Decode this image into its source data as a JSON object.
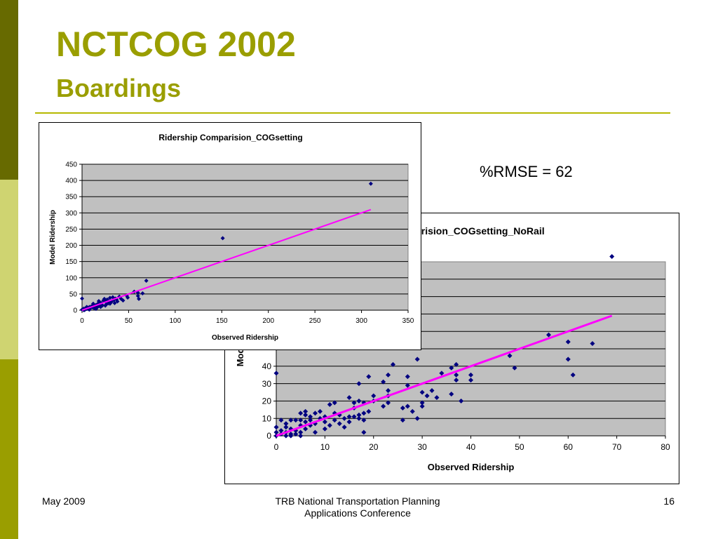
{
  "slide": {
    "title": "NCTCOG 2002",
    "subtitle": "Boardings",
    "rmse_label": "%RMSE = 62",
    "footer": {
      "date": "May 2009",
      "conference_line1": "TRB National Transportation Planning",
      "conference_line2": "Applications Conference",
      "page_number": "16"
    },
    "colors": {
      "accent": "#9a9e00",
      "bar_dark": "#676a00",
      "bar_light": "#cfd471",
      "plot_bg": "#c0c0c0",
      "point": "#000080",
      "trend": "#ff00ff"
    }
  },
  "chart_data": [
    {
      "type": "scatter",
      "title": "Ridership Comparision_COGsetting",
      "xlabel": "Observed Ridership",
      "ylabel": "Model Ridership",
      "xlim": [
        0,
        350
      ],
      "ylim": [
        0,
        450
      ],
      "xticks": [
        0,
        50,
        100,
        150,
        200,
        250,
        300,
        350
      ],
      "yticks": [
        0,
        50,
        100,
        150,
        200,
        250,
        300,
        350,
        400,
        450
      ],
      "grid": true,
      "trendline": {
        "x": [
          0,
          310
        ],
        "y": [
          0,
          310
        ]
      },
      "points": [
        [
          0,
          2
        ],
        [
          1,
          3
        ],
        [
          2,
          5
        ],
        [
          3,
          1
        ],
        [
          4,
          6
        ],
        [
          5,
          4
        ],
        [
          6,
          8
        ],
        [
          7,
          3
        ],
        [
          8,
          10
        ],
        [
          9,
          7
        ],
        [
          10,
          12
        ],
        [
          11,
          9
        ],
        [
          12,
          14
        ],
        [
          13,
          6
        ],
        [
          14,
          11
        ],
        [
          15,
          16
        ],
        [
          16,
          8
        ],
        [
          17,
          20
        ],
        [
          18,
          13
        ],
        [
          19,
          25
        ],
        [
          20,
          18
        ],
        [
          21,
          22
        ],
        [
          22,
          15
        ],
        [
          23,
          30
        ],
        [
          24,
          35
        ],
        [
          25,
          27
        ],
        [
          26,
          18
        ],
        [
          27,
          33
        ],
        [
          28,
          21
        ],
        [
          29,
          26
        ],
        [
          30,
          38
        ],
        [
          31,
          24
        ],
        [
          32,
          29
        ],
        [
          33,
          40
        ],
        [
          34,
          31
        ],
        [
          35,
          22
        ],
        [
          36,
          36
        ],
        [
          37,
          33
        ],
        [
          38,
          27
        ],
        [
          40,
          42
        ],
        [
          42,
          35
        ],
        [
          44,
          30
        ],
        [
          48,
          45
        ],
        [
          49,
          39
        ],
        [
          56,
          57
        ],
        [
          60,
          44
        ],
        [
          60,
          54
        ],
        [
          61,
          35
        ],
        [
          65,
          52
        ],
        [
          69,
          91
        ],
        [
          0,
          36
        ],
        [
          2,
          0
        ],
        [
          5,
          10
        ],
        [
          8,
          2
        ],
        [
          12,
          20
        ],
        [
          15,
          4
        ],
        [
          18,
          28
        ],
        [
          20,
          10
        ],
        [
          25,
          14
        ],
        [
          30,
          20
        ],
        [
          151,
          222
        ],
        [
          310,
          390
        ]
      ]
    },
    {
      "type": "scatter",
      "title": "arision_COGsetting_NoRail",
      "xlabel": "Observed Ridership",
      "ylabel": "Model R",
      "xlim": [
        0,
        80
      ],
      "ylim": [
        0,
        100
      ],
      "xticks": [
        0,
        10,
        20,
        30,
        40,
        50,
        60,
        70,
        80
      ],
      "yticks_visible": [
        0,
        10,
        20,
        30,
        40
      ],
      "grid": true,
      "trendline": {
        "x": [
          0,
          69
        ],
        "y": [
          0,
          69
        ]
      },
      "points": [
        [
          0,
          36
        ],
        [
          0,
          0
        ],
        [
          0,
          2
        ],
        [
          0,
          5
        ],
        [
          1,
          1
        ],
        [
          1,
          3
        ],
        [
          1,
          9
        ],
        [
          2,
          0
        ],
        [
          2,
          2
        ],
        [
          2,
          5
        ],
        [
          2,
          7
        ],
        [
          3,
          0
        ],
        [
          3,
          1
        ],
        [
          3,
          4
        ],
        [
          3,
          9
        ],
        [
          4,
          1
        ],
        [
          4,
          3
        ],
        [
          4,
          9
        ],
        [
          5,
          0
        ],
        [
          5,
          2
        ],
        [
          5,
          6
        ],
        [
          5,
          9
        ],
        [
          5,
          13
        ],
        [
          6,
          4
        ],
        [
          6,
          8
        ],
        [
          6,
          12
        ],
        [
          6,
          14
        ],
        [
          7,
          6
        ],
        [
          7,
          9
        ],
        [
          7,
          11
        ],
        [
          8,
          2
        ],
        [
          8,
          7
        ],
        [
          8,
          13
        ],
        [
          9,
          10
        ],
        [
          9,
          14
        ],
        [
          10,
          4
        ],
        [
          10,
          8
        ],
        [
          10,
          11
        ],
        [
          11,
          6
        ],
        [
          11,
          18
        ],
        [
          12,
          9
        ],
        [
          12,
          13
        ],
        [
          12,
          19
        ],
        [
          13,
          7
        ],
        [
          13,
          12
        ],
        [
          14,
          5
        ],
        [
          14,
          10
        ],
        [
          15,
          8
        ],
        [
          15,
          11
        ],
        [
          15,
          22
        ],
        [
          16,
          11
        ],
        [
          16,
          16
        ],
        [
          16,
          19
        ],
        [
          17,
          10
        ],
        [
          17,
          12
        ],
        [
          17,
          20
        ],
        [
          17,
          30
        ],
        [
          18,
          2
        ],
        [
          18,
          9
        ],
        [
          18,
          13
        ],
        [
          18,
          19
        ],
        [
          19,
          14
        ],
        [
          19,
          34
        ],
        [
          20,
          20
        ],
        [
          20,
          23
        ],
        [
          22,
          17
        ],
        [
          22,
          31
        ],
        [
          23,
          19
        ],
        [
          23,
          23
        ],
        [
          23,
          26
        ],
        [
          23,
          35
        ],
        [
          24,
          41
        ],
        [
          26,
          9
        ],
        [
          26,
          16
        ],
        [
          27,
          17
        ],
        [
          27,
          29
        ],
        [
          27,
          34
        ],
        [
          28,
          14
        ],
        [
          29,
          10
        ],
        [
          29,
          44
        ],
        [
          30,
          17
        ],
        [
          30,
          19
        ],
        [
          30,
          25
        ],
        [
          31,
          23
        ],
        [
          32,
          26
        ],
        [
          33,
          22
        ],
        [
          34,
          36
        ],
        [
          36,
          24
        ],
        [
          36,
          39
        ],
        [
          37,
          32
        ],
        [
          37,
          35
        ],
        [
          37,
          41
        ],
        [
          38,
          20
        ],
        [
          40,
          32
        ],
        [
          40,
          35
        ],
        [
          48,
          46
        ],
        [
          49,
          39
        ],
        [
          56,
          58
        ],
        [
          60,
          54
        ],
        [
          60,
          44
        ],
        [
          61,
          35
        ],
        [
          65,
          53
        ],
        [
          69,
          103
        ]
      ]
    }
  ]
}
